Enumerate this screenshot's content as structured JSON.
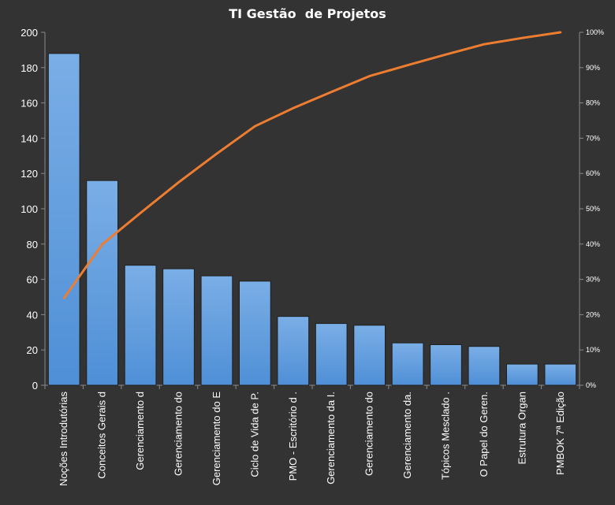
{
  "chart_data": {
    "type": "bar",
    "title": "TI Gestão  de Projetos",
    "categories": [
      "Noções Introdutórias",
      "Conceitos Gerais d",
      "Gerenciamento d",
      "Gerenciamento do",
      "Gerenciamento do E",
      "Ciclo de Vida de P.",
      "PMO - Escritório d .",
      "Gerenciamento da I.",
      "Gerenciamento do",
      "Gerenciamento da.",
      "Tópicos Mesclado .",
      "O Papel do Geren.",
      "Estrutura  Organ",
      "PMBOK 7ª Edição"
    ],
    "series": [
      {
        "kind": "bar",
        "values": [
          188,
          116,
          68,
          66,
          62,
          59,
          39,
          35,
          34,
          24,
          23,
          22,
          12,
          12
        ],
        "color": "#4f8fd6"
      },
      {
        "kind": "line",
        "axis": "right",
        "values": [
          24.7,
          39.9,
          48.8,
          57.5,
          65.6,
          73.4,
          78.5,
          83.1,
          87.6,
          90.7,
          93.7,
          96.6,
          98.4,
          100
        ],
        "color": "#ed7d31"
      }
    ],
    "ylim": [
      0,
      200
    ],
    "y_ticks": [
      "0",
      "20",
      "40",
      "60",
      "80",
      "100",
      "120",
      "140",
      "160",
      "180",
      "200"
    ],
    "y2lim": [
      0,
      100
    ],
    "y2_ticks": [
      "0%",
      "10%",
      "20%",
      "30%",
      "40%",
      "50%",
      "60%",
      "70%",
      "80%",
      "90%",
      "100%"
    ],
    "grid": false,
    "legend": "none",
    "background": "#333333"
  }
}
